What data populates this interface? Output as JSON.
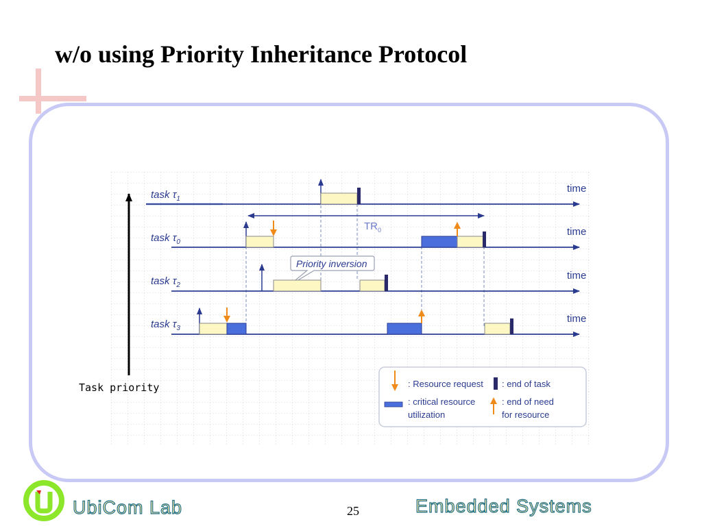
{
  "slide": {
    "title": "w/o using Priority Inheritance Protocol",
    "page_number": "25",
    "footer_left": "UbiCom Lab",
    "footer_right": "Embedded Systems"
  },
  "diagram": {
    "priority_axis_label": "Task priority",
    "time_label": "time",
    "tasks": [
      {
        "id": "tau1",
        "label": "task",
        "symbol": "τ",
        "subscript": "1"
      },
      {
        "id": "tau0",
        "label": "task",
        "symbol": "τ",
        "subscript": "0"
      },
      {
        "id": "tau2",
        "label": "task",
        "symbol": "τ",
        "subscript": "2"
      },
      {
        "id": "tau3",
        "label": "task",
        "symbol": "τ",
        "subscript": "3"
      }
    ],
    "span_label_main": "TR",
    "span_label_sub": "0",
    "callout": "Priority inversion",
    "legend": {
      "resource_request": ": Resource request",
      "end_of_task": ": end of task",
      "critical_line1": ": critical resource",
      "critical_line2": "utilization",
      "end_need_line1": ": end of need",
      "end_need_line2": "for resource"
    },
    "colors": {
      "axis": "#2a3b8f",
      "normal_execution": "#fdf7c4",
      "critical_execution": "#4a6fdc",
      "request_arrow": "#f08a18",
      "end_of_task": "#2a2a6a",
      "frame": "#c9c9f5"
    }
  }
}
